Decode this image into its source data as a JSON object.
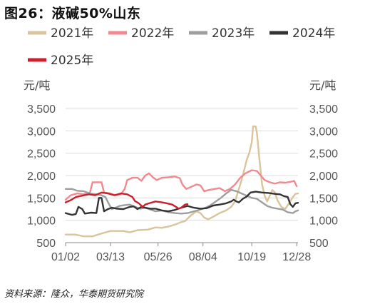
{
  "title": "图26：液碱50%山东",
  "source": "资料来源：隆众，华泰期货研究院",
  "chart_data": {
    "type": "line",
    "y_unit_left": "元/吨",
    "y_unit_right": "元/吨",
    "ylim": [
      500,
      3500
    ],
    "yticks": [
      "500",
      "1,000",
      "1,500",
      "2,000",
      "2,500",
      "3,000",
      "3,500"
    ],
    "ytick_values": [
      500,
      1000,
      1500,
      2000,
      2500,
      3000,
      3500
    ],
    "xlim": [
      0,
      362
    ],
    "xticks": [
      "01/02",
      "03/13",
      "05/26",
      "08/04",
      "10/19",
      "12/28"
    ],
    "xtick_values": [
      0,
      70,
      144,
      214,
      290,
      360
    ],
    "grid": "horizontal",
    "legend": "top",
    "series": [
      {
        "name": "2021年",
        "color": "#d9c49b",
        "points": [
          [
            0,
            680
          ],
          [
            15,
            680
          ],
          [
            28,
            640
          ],
          [
            42,
            640
          ],
          [
            55,
            700
          ],
          [
            70,
            760
          ],
          [
            90,
            760
          ],
          [
            100,
            730
          ],
          [
            112,
            780
          ],
          [
            128,
            790
          ],
          [
            140,
            840
          ],
          [
            150,
            830
          ],
          [
            160,
            860
          ],
          [
            170,
            900
          ],
          [
            180,
            960
          ],
          [
            186,
            980
          ],
          [
            196,
            1120
          ],
          [
            204,
            1200
          ],
          [
            210,
            1160
          ],
          [
            216,
            1060
          ],
          [
            222,
            1020
          ],
          [
            230,
            1080
          ],
          [
            240,
            1160
          ],
          [
            250,
            1220
          ],
          [
            258,
            1300
          ],
          [
            264,
            1420
          ],
          [
            270,
            1700
          ],
          [
            276,
            2000
          ],
          [
            282,
            2350
          ],
          [
            286,
            2500
          ],
          [
            290,
            2750
          ],
          [
            292,
            3100
          ],
          [
            296,
            3100
          ],
          [
            298,
            2950
          ],
          [
            302,
            2350
          ],
          [
            306,
            1800
          ],
          [
            310,
            1550
          ],
          [
            314,
            1420
          ],
          [
            318,
            1550
          ],
          [
            322,
            1680
          ],
          [
            326,
            1620
          ],
          [
            330,
            1450
          ],
          [
            336,
            1300
          ],
          [
            342,
            1250
          ],
          [
            348,
            1380
          ],
          [
            354,
            1520
          ],
          [
            358,
            1590
          ],
          [
            362,
            1600
          ]
        ]
      },
      {
        "name": "2022年",
        "color": "#f08a90",
        "points": [
          [
            0,
            1460
          ],
          [
            8,
            1560
          ],
          [
            18,
            1600
          ],
          [
            28,
            1580
          ],
          [
            38,
            1620
          ],
          [
            42,
            1850
          ],
          [
            50,
            1850
          ],
          [
            56,
            1850
          ],
          [
            60,
            1620
          ],
          [
            70,
            1600
          ],
          [
            78,
            1560
          ],
          [
            86,
            1580
          ],
          [
            92,
            1700
          ],
          [
            96,
            1900
          ],
          [
            104,
            1950
          ],
          [
            112,
            1950
          ],
          [
            118,
            1880
          ],
          [
            124,
            2000
          ],
          [
            130,
            2050
          ],
          [
            136,
            1960
          ],
          [
            142,
            1900
          ],
          [
            150,
            1950
          ],
          [
            160,
            1960
          ],
          [
            170,
            1980
          ],
          [
            178,
            1940
          ],
          [
            182,
            1800
          ],
          [
            188,
            1700
          ],
          [
            196,
            1750
          ],
          [
            204,
            1800
          ],
          [
            210,
            1780
          ],
          [
            216,
            1650
          ],
          [
            224,
            1680
          ],
          [
            232,
            1700
          ],
          [
            240,
            1720
          ],
          [
            248,
            1650
          ],
          [
            256,
            1700
          ],
          [
            264,
            1800
          ],
          [
            272,
            1950
          ],
          [
            280,
            2050
          ],
          [
            290,
            2120
          ],
          [
            298,
            2100
          ],
          [
            304,
            2000
          ],
          [
            310,
            1900
          ],
          [
            318,
            1850
          ],
          [
            326,
            1820
          ],
          [
            334,
            1850
          ],
          [
            342,
            1840
          ],
          [
            350,
            1860
          ],
          [
            356,
            1880
          ],
          [
            360,
            1760
          ]
        ]
      },
      {
        "name": "2023年",
        "color": "#9e9e9e",
        "points": [
          [
            0,
            1700
          ],
          [
            10,
            1700
          ],
          [
            18,
            1660
          ],
          [
            28,
            1650
          ],
          [
            38,
            1600
          ],
          [
            48,
            1580
          ],
          [
            56,
            1560
          ],
          [
            62,
            1520
          ],
          [
            68,
            1350
          ],
          [
            72,
            1250
          ],
          [
            78,
            1280
          ],
          [
            84,
            1320
          ],
          [
            92,
            1340
          ],
          [
            100,
            1350
          ],
          [
            108,
            1300
          ],
          [
            116,
            1260
          ],
          [
            124,
            1280
          ],
          [
            132,
            1240
          ],
          [
            140,
            1200
          ],
          [
            150,
            1220
          ],
          [
            160,
            1180
          ],
          [
            170,
            1160
          ],
          [
            180,
            1150
          ],
          [
            190,
            1160
          ],
          [
            200,
            1200
          ],
          [
            210,
            1240
          ],
          [
            218,
            1280
          ],
          [
            226,
            1340
          ],
          [
            234,
            1420
          ],
          [
            242,
            1500
          ],
          [
            250,
            1600
          ],
          [
            258,
            1680
          ],
          [
            266,
            1650
          ],
          [
            274,
            1600
          ],
          [
            282,
            1550
          ],
          [
            290,
            1500
          ],
          [
            298,
            1480
          ],
          [
            306,
            1400
          ],
          [
            314,
            1320
          ],
          [
            322,
            1280
          ],
          [
            330,
            1260
          ],
          [
            338,
            1240
          ],
          [
            346,
            1180
          ],
          [
            354,
            1160
          ],
          [
            358,
            1200
          ],
          [
            362,
            1220
          ]
        ]
      },
      {
        "name": "2024年",
        "color": "#333333",
        "points": [
          [
            0,
            1160
          ],
          [
            10,
            1120
          ],
          [
            16,
            1140
          ],
          [
            20,
            1300
          ],
          [
            26,
            1250
          ],
          [
            30,
            1150
          ],
          [
            40,
            1170
          ],
          [
            48,
            1160
          ],
          [
            52,
            1500
          ],
          [
            56,
            1500
          ],
          [
            60,
            1200
          ],
          [
            66,
            1250
          ],
          [
            72,
            1280
          ],
          [
            80,
            1260
          ],
          [
            90,
            1250
          ],
          [
            100,
            1300
          ],
          [
            106,
            1310
          ],
          [
            112,
            1250
          ],
          [
            118,
            1300
          ],
          [
            124,
            1280
          ],
          [
            132,
            1260
          ],
          [
            140,
            1260
          ],
          [
            150,
            1220
          ],
          [
            160,
            1200
          ],
          [
            170,
            1230
          ],
          [
            180,
            1280
          ],
          [
            190,
            1320
          ],
          [
            200,
            1280
          ],
          [
            210,
            1260
          ],
          [
            220,
            1270
          ],
          [
            230,
            1330
          ],
          [
            240,
            1350
          ],
          [
            250,
            1380
          ],
          [
            258,
            1420
          ],
          [
            262,
            1460
          ],
          [
            266,
            1420
          ],
          [
            270,
            1400
          ],
          [
            276,
            1480
          ],
          [
            282,
            1530
          ],
          [
            288,
            1620
          ],
          [
            296,
            1640
          ],
          [
            306,
            1620
          ],
          [
            316,
            1610
          ],
          [
            326,
            1590
          ],
          [
            334,
            1580
          ],
          [
            340,
            1540
          ],
          [
            346,
            1520
          ],
          [
            350,
            1360
          ],
          [
            354,
            1300
          ],
          [
            358,
            1380
          ],
          [
            362,
            1390
          ]
        ]
      },
      {
        "name": "2025年",
        "color": "#cc1f2d",
        "points": [
          [
            0,
            1400
          ],
          [
            8,
            1450
          ],
          [
            16,
            1520
          ],
          [
            26,
            1550
          ],
          [
            36,
            1580
          ],
          [
            46,
            1560
          ],
          [
            56,
            1620
          ],
          [
            66,
            1600
          ],
          [
            76,
            1560
          ],
          [
            86,
            1600
          ],
          [
            96,
            1580
          ],
          [
            104,
            1520
          ],
          [
            108,
            1430
          ],
          [
            114,
            1380
          ],
          [
            120,
            1300
          ],
          [
            124,
            1350
          ],
          [
            130,
            1380
          ],
          [
            140,
            1420
          ],
          [
            150,
            1400
          ],
          [
            158,
            1380
          ],
          [
            166,
            1350
          ],
          [
            172,
            1300
          ],
          [
            176,
            1260
          ],
          [
            180,
            1280
          ],
          [
            186,
            1350
          ],
          [
            190,
            1360
          ]
        ]
      }
    ]
  }
}
